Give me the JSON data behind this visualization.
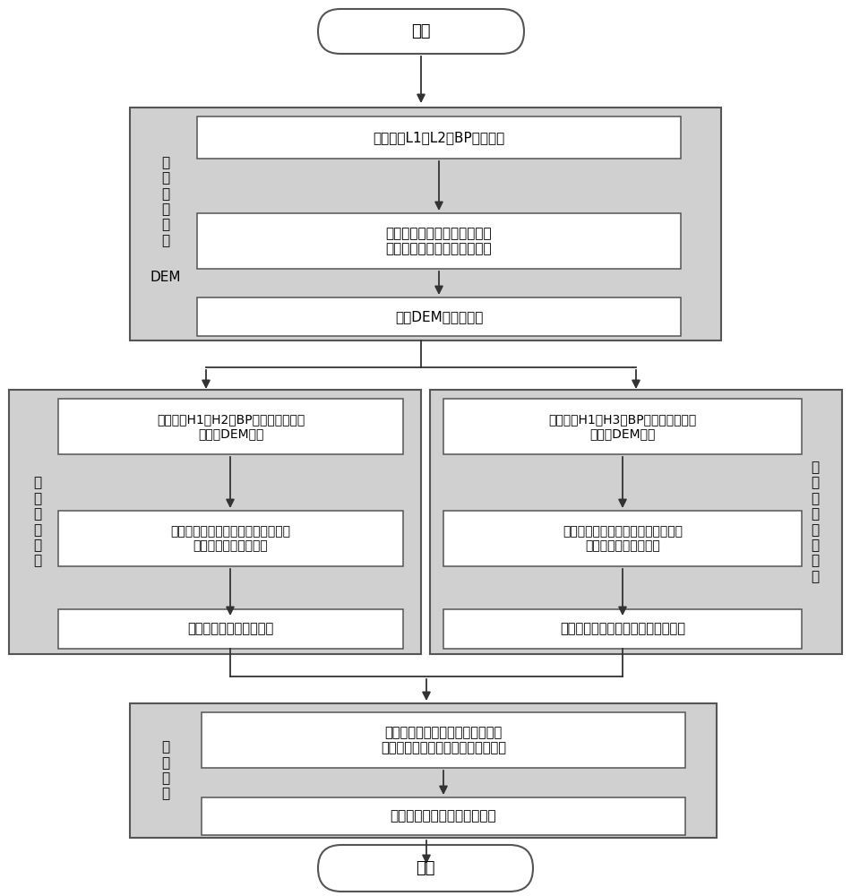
{
  "bg_color": "#ffffff",
  "box_bg": "#d0d0d0",
  "inner_box_bg": "#ffffff",
  "border_color": "#555555",
  "text_color": "#000000",
  "arrow_color": "#333333",
  "start_text": "开始",
  "end_text": "结束",
  "dem_group_label_line1": "低",
  "dem_group_label_line2": "频",
  "dem_group_label_line3": "数",
  "dem_group_label_line4": "据",
  "dem_group_label_line5": "反",
  "dem_group_label_line6": "演",
  "dem_group_label_dem": "DEM",
  "left_group_label": "高\n频\n地\n形\n相\n位",
  "right_group_label": "高\n频\n形\n变\n地\n形\n相\n位",
  "bottom_group_label": "地\n形\n形\n变",
  "box1_text": "低频回波L1和L2做BP成像处理",
  "box2_text": "干涉处理：图像配准、共轭相\n乘、滤波处理、相位解缠处理",
  "box3_text": "重建DEM、地理编码",
  "box4_text": "高频回波H1和H2做BP成像处理，参考\n网格为DEM信息",
  "box5_text": "干涉处理：图像配准、共轭相乘、滤\n波处理、相位解缠处理",
  "box6_text": "包含地形信息的解缠相位",
  "box7_text": "高频回波H1和H3做BP成像处理，参考\n网格为DEM信息",
  "box8_text": "干涉处理：图像配准、共轭相乘、滤\n波处理、相位解缠处理",
  "box9_text": "包含地形、地形形变信息的解缠相位",
  "box10_text": "包含地形信息的解缠相位与包含地\n形、形变信息的解缠相位做差分处理",
  "box11_text": "获得沿视线方向的地形形变量"
}
